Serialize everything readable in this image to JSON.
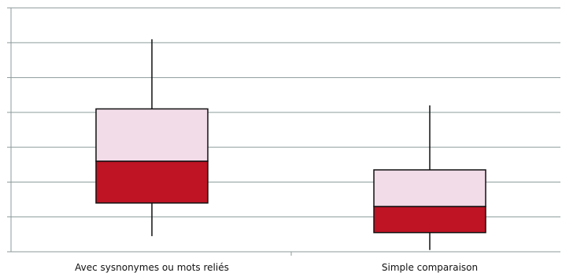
{
  "chart_data": {
    "type": "box",
    "title": "",
    "xlabel": "",
    "ylabel": "",
    "ylim": [
      0,
      7
    ],
    "yticks": [
      0,
      1,
      2,
      3,
      4,
      5,
      6,
      7
    ],
    "grid": "horizontal",
    "categories": [
      "Avec sysnonymes ou mots  reliés",
      "Simple comparaison"
    ],
    "boxes": [
      {
        "category": "Avec sysnonymes ou mots  reliés",
        "whisker_low": 0.45,
        "q1": 1.4,
        "median": 2.6,
        "q3": 4.1,
        "whisker_high": 6.1
      },
      {
        "category": "Simple comparaison",
        "whisker_low": 0.05,
        "q1": 0.55,
        "median": 1.3,
        "q3": 2.35,
        "whisker_high": 4.2
      }
    ],
    "colors": {
      "lower_box": "#BE1424",
      "upper_box": "#F2DCE8",
      "gridline": "#8C9A9A",
      "outline": "#111111"
    }
  }
}
